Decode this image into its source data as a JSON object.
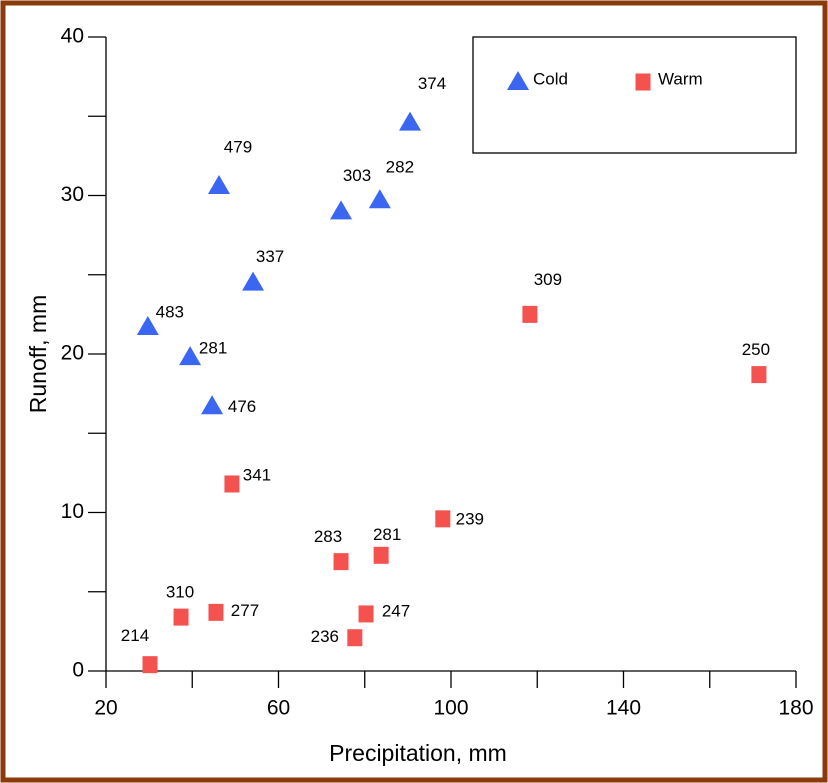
{
  "chart_data": {
    "type": "scatter",
    "xlabel": "Precipitation, mm",
    "ylabel": "Runoff, mm",
    "xlim": [
      20,
      180
    ],
    "xticks": [
      20,
      60,
      100,
      140,
      180
    ],
    "xminor_ticks": [
      40,
      80,
      120,
      160
    ],
    "ylim": [
      0,
      40
    ],
    "yticks": [
      0,
      10,
      20,
      30,
      40
    ],
    "yminor_ticks": [
      5,
      15,
      25,
      35
    ],
    "legend": "upper right",
    "series": [
      {
        "name": "Cold",
        "color": "#3a66f2",
        "marker": "triangle",
        "x": [
          29.7,
          39.5,
          44.6,
          54.1,
          46.2,
          74.5,
          83.5,
          90.5
        ],
        "values": [
          21.7,
          19.8,
          16.7,
          24.5,
          30.6,
          29.0,
          29.7,
          34.6
        ],
        "labels": [
          "483",
          "281",
          "476",
          "337",
          "479",
          "303",
          "282",
          "374"
        ]
      },
      {
        "name": "Warm",
        "color": "#f4524f",
        "marker": "square",
        "x": [
          30.2,
          37.4,
          45.5,
          49.2,
          74.5,
          83.8,
          77.7,
          80.3,
          98.1,
          118.3,
          171.4
        ],
        "values": [
          0.4,
          3.4,
          3.7,
          11.8,
          6.9,
          7.3,
          2.1,
          3.6,
          9.6,
          22.5,
          18.7
        ],
        "labels": [
          "214",
          "310",
          "277",
          "341",
          "283",
          "281",
          "236",
          "247",
          "239",
          "309",
          "250"
        ]
      }
    ]
  }
}
